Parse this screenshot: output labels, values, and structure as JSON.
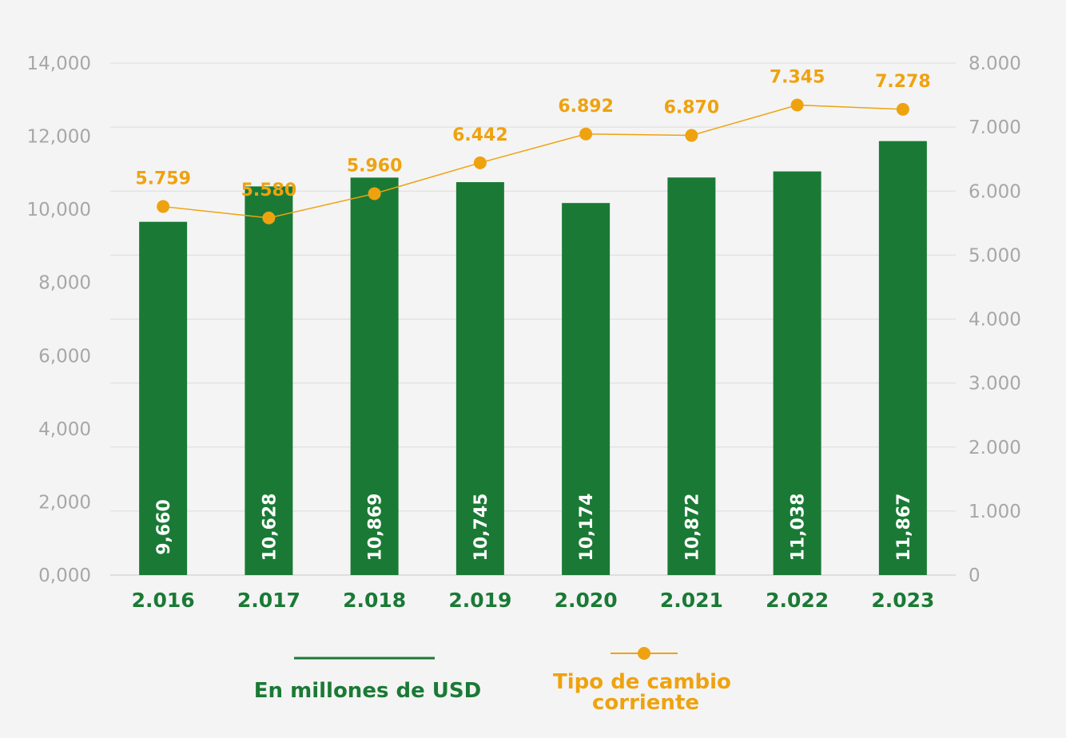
{
  "chart_data": {
    "type": "bar",
    "categories": [
      "2.016",
      "2.017",
      "2.018",
      "2.019",
      "2.020",
      "2.021",
      "2.022",
      "2.023"
    ],
    "series": [
      {
        "name": "En millones de USD",
        "type": "bar",
        "axis": "left",
        "color": "#1a7a35",
        "values": [
          9660,
          10628,
          10869,
          10745,
          10174,
          10872,
          11038,
          11867
        ],
        "labels": [
          "9,660",
          "10,628",
          "10,869",
          "10,745",
          "10,174",
          "10,872",
          "11,038",
          "11,867"
        ]
      },
      {
        "name": "Tipo de cambio corriente",
        "name_lines": [
          "Tipo de cambio",
          "corriente"
        ],
        "type": "line",
        "axis": "right",
        "color": "#efa20f",
        "values": [
          5759,
          5580,
          5960,
          6442,
          6892,
          6870,
          7345,
          7278
        ],
        "labels": [
          "5.759",
          "5.580",
          "5.960",
          "6.442",
          "6.892",
          "6.870",
          "7.345",
          "7.278"
        ]
      }
    ],
    "y_left": {
      "ylim": [
        0,
        14000
      ],
      "ticks": [
        0,
        2000,
        4000,
        6000,
        8000,
        10000,
        12000,
        14000
      ],
      "tick_labels": [
        "0,000",
        "2,000",
        "4,000",
        "6,000",
        "8,000",
        "10,000",
        "12,000",
        "14,000"
      ]
    },
    "y_right": {
      "ylim": [
        0,
        8000
      ],
      "ticks": [
        0,
        1000,
        2000,
        3000,
        4000,
        5000,
        6000,
        7000,
        8000
      ],
      "tick_labels": [
        "0",
        "1.000",
        "2.000",
        "3.000",
        "4.000",
        "5.000",
        "6.000",
        "7.000",
        "8.000"
      ]
    },
    "grid": true,
    "legend_position": "bottom"
  }
}
